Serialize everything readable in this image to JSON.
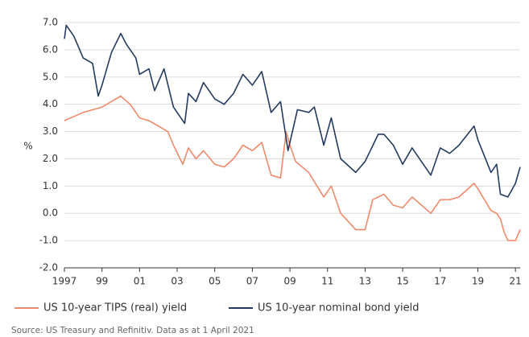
{
  "chart_data": {
    "type": "line",
    "y_label": "%",
    "source": "Source: US Treasury and Refinitiv. Data as at 1 April 2021",
    "xlim": [
      1997,
      2021.25
    ],
    "xticks": [
      1997,
      {
        "value": 1999,
        "label": "99"
      },
      {
        "value": 2001,
        "label": "01"
      },
      {
        "value": 2003,
        "label": "03"
      },
      {
        "value": 2005,
        "label": "05"
      },
      {
        "value": 2007,
        "label": "07"
      },
      {
        "value": 2009,
        "label": "09"
      },
      {
        "value": 2011,
        "label": "11"
      },
      {
        "value": 2013,
        "label": "13"
      },
      {
        "value": 2015,
        "label": "15"
      },
      {
        "value": 2017,
        "label": "17"
      },
      {
        "value": 2019,
        "label": "19"
      },
      {
        "value": 2021,
        "label": "21"
      }
    ],
    "ylim": [
      -2,
      7
    ],
    "yticks": [
      {
        "value": -2,
        "label": "-2.0"
      },
      {
        "value": -1,
        "label": "-1.0"
      },
      {
        "value": 0,
        "label": "0.0"
      },
      {
        "value": 1,
        "label": "1.0"
      },
      {
        "value": 2,
        "label": "2.0"
      },
      {
        "value": 3,
        "label": "3.0"
      },
      {
        "value": 4,
        "label": "4.0"
      },
      {
        "value": 5,
        "label": "5.0"
      },
      {
        "value": 6,
        "label": "6.0"
      },
      {
        "value": 7,
        "label": "7.0"
      }
    ],
    "grid": true,
    "series": [
      {
        "name": "US 10-year TIPS (real) yield",
        "color": "#ef8a6b",
        "x": [
          1997,
          1998,
          1999,
          2000,
          2000.5,
          2001,
          2001.5,
          2002,
          2002.5,
          2002.8,
          2003.3,
          2003.6,
          2004,
          2004.4,
          2005,
          2005.5,
          2006,
          2006.5,
          2007,
          2007.5,
          2008,
          2008.5,
          2008.8,
          2009,
          2009.3,
          2010,
          2010.8,
          2011.2,
          2011.7,
          2012.5,
          2013,
          2013.4,
          2014,
          2014.5,
          2015,
          2015.5,
          2016.5,
          2017,
          2017.5,
          2018,
          2018.8,
          2019,
          2019.7,
          2020,
          2020.2,
          2020.4,
          2020.6,
          2021,
          2021.25
        ],
        "values": [
          3.4,
          3.7,
          3.9,
          4.3,
          4.0,
          3.5,
          3.4,
          3.2,
          3.0,
          2.5,
          1.8,
          2.4,
          2.0,
          2.3,
          1.8,
          1.7,
          2.0,
          2.5,
          2.3,
          2.6,
          1.4,
          1.3,
          3.0,
          2.5,
          1.9,
          1.5,
          0.6,
          1.0,
          0.0,
          -0.6,
          -0.6,
          0.5,
          0.7,
          0.3,
          0.2,
          0.6,
          0.0,
          0.5,
          0.5,
          0.6,
          1.1,
          0.9,
          0.1,
          0.0,
          -0.2,
          -0.7,
          -1.0,
          -1.0,
          -0.6
        ]
      },
      {
        "name": "US 10-year nominal bond yield",
        "color": "#243a5e",
        "x": [
          1997,
          1997.1,
          1997.5,
          1998,
          1998.5,
          1998.8,
          1999,
          1999.5,
          2000,
          2000.3,
          2000.8,
          2001,
          2001.5,
          2001.8,
          2002.3,
          2002.8,
          2003.4,
          2003.6,
          2004,
          2004.4,
          2005,
          2005.5,
          2006,
          2006.5,
          2007,
          2007.5,
          2008,
          2008.5,
          2008.9,
          2009.4,
          2010,
          2010.3,
          2010.8,
          2011.2,
          2011.7,
          2012.5,
          2013,
          2013.7,
          2014,
          2014.5,
          2015,
          2015.5,
          2016.5,
          2017,
          2017.5,
          2018,
          2018.8,
          2019,
          2019.7,
          2020,
          2020.2,
          2020.6,
          2021,
          2021.25
        ],
        "values": [
          6.4,
          6.9,
          6.5,
          5.7,
          5.5,
          4.3,
          4.7,
          5.9,
          6.6,
          6.2,
          5.7,
          5.1,
          5.3,
          4.5,
          5.3,
          3.9,
          3.3,
          4.4,
          4.1,
          4.8,
          4.2,
          4.0,
          4.4,
          5.1,
          4.7,
          5.2,
          3.7,
          4.1,
          2.3,
          3.8,
          3.7,
          3.9,
          2.5,
          3.5,
          2.0,
          1.5,
          1.9,
          2.9,
          2.9,
          2.5,
          1.8,
          2.4,
          1.4,
          2.4,
          2.2,
          2.5,
          3.2,
          2.7,
          1.5,
          1.8,
          0.7,
          0.6,
          1.1,
          1.7
        ]
      }
    ]
  }
}
